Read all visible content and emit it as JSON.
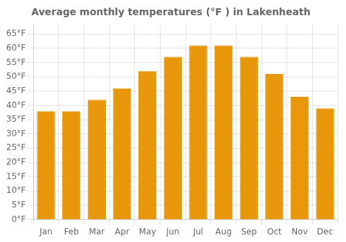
{
  "chart_data": {
    "type": "bar",
    "title": "Average monthly temperatures (°F ) in Lakenheath",
    "categories": [
      "Jan",
      "Feb",
      "Mar",
      "Apr",
      "May",
      "Jun",
      "Jul",
      "Aug",
      "Sep",
      "Oct",
      "Nov",
      "Dec"
    ],
    "values": [
      38,
      38,
      42,
      46,
      52,
      57,
      61,
      61,
      57,
      51,
      43,
      39
    ],
    "color": "#E8960A",
    "ylim": [
      0,
      68
    ],
    "yticks": [
      {
        "value": 0,
        "label": "0°F"
      },
      {
        "value": 5,
        "label": "5°F"
      },
      {
        "value": 10,
        "label": "10°F"
      },
      {
        "value": 15,
        "label": "15°F"
      },
      {
        "value": 20,
        "label": "20°F"
      },
      {
        "value": 25,
        "label": "25°F"
      },
      {
        "value": 30,
        "label": "30°F"
      },
      {
        "value": 35,
        "label": "35°F"
      },
      {
        "value": 40,
        "label": "40°F"
      },
      {
        "value": 45,
        "label": "45°F"
      },
      {
        "value": 50,
        "label": "50°F"
      },
      {
        "value": 55,
        "label": "55°F"
      },
      {
        "value": 60,
        "label": "60°F"
      },
      {
        "value": 65,
        "label": "65°F"
      }
    ],
    "grid": true
  }
}
